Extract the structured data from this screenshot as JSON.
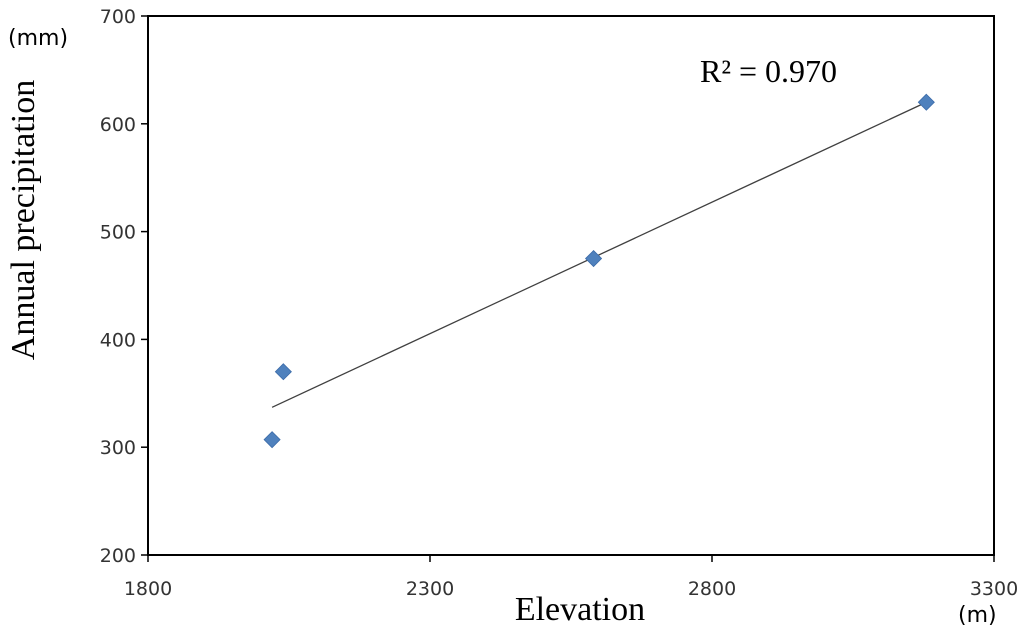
{
  "chart_data": {
    "type": "scatter",
    "xlabel": "Elevation",
    "ylabel": "Annual precipitation",
    "x_unit": "(m)",
    "y_unit": "(mm)",
    "xlim": [
      1800,
      3300
    ],
    "ylim": [
      200,
      700
    ],
    "x_ticks": [
      1800,
      2300,
      2800,
      3300
    ],
    "y_ticks": [
      200,
      300,
      400,
      500,
      600,
      700
    ],
    "grid": false,
    "points": [
      {
        "x": 2020,
        "y": 307
      },
      {
        "x": 2040,
        "y": 370
      },
      {
        "x": 2590,
        "y": 475
      },
      {
        "x": 3180,
        "y": 620
      }
    ],
    "trendline": {
      "type": "linear",
      "x_range": [
        2020,
        3180
      ],
      "y_range": [
        337,
        620
      ]
    },
    "annotation": "R² = 0.970",
    "marker_color": "#4F81BD",
    "line_color": "#404040"
  }
}
